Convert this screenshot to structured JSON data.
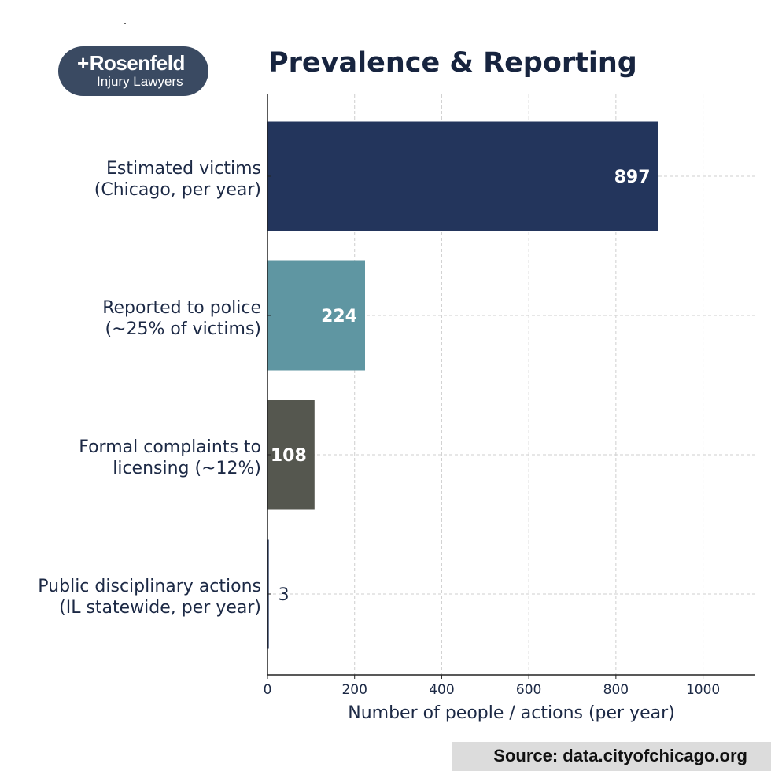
{
  "logo": {
    "brand": "Rosenfeld",
    "subtitle": "Injury Lawyers"
  },
  "source": "Source: data.cityofchicago.org",
  "chart_data": {
    "type": "bar",
    "orientation": "horizontal",
    "title": "Prevalence & Reporting",
    "xlabel": "Number of people / actions (per year)",
    "ylabel": "",
    "xlim": [
      0,
      1120
    ],
    "xticks": [
      0,
      200,
      400,
      600,
      800,
      1000
    ],
    "grid": true,
    "categories": [
      [
        "Estimated victims",
        "(Chicago, per year)"
      ],
      [
        "Reported to police",
        "(~25% of victims)"
      ],
      [
        "Formal complaints to",
        "licensing (~12%)"
      ],
      [
        "Public disciplinary actions",
        "(IL statewide, per year)"
      ]
    ],
    "values": [
      897,
      224,
      108,
      3
    ],
    "value_labels": [
      "897",
      "224",
      "108",
      "3"
    ],
    "colors": [
      "#23355c",
      "#5f96a2",
      "#55574f",
      "#23355c"
    ]
  }
}
